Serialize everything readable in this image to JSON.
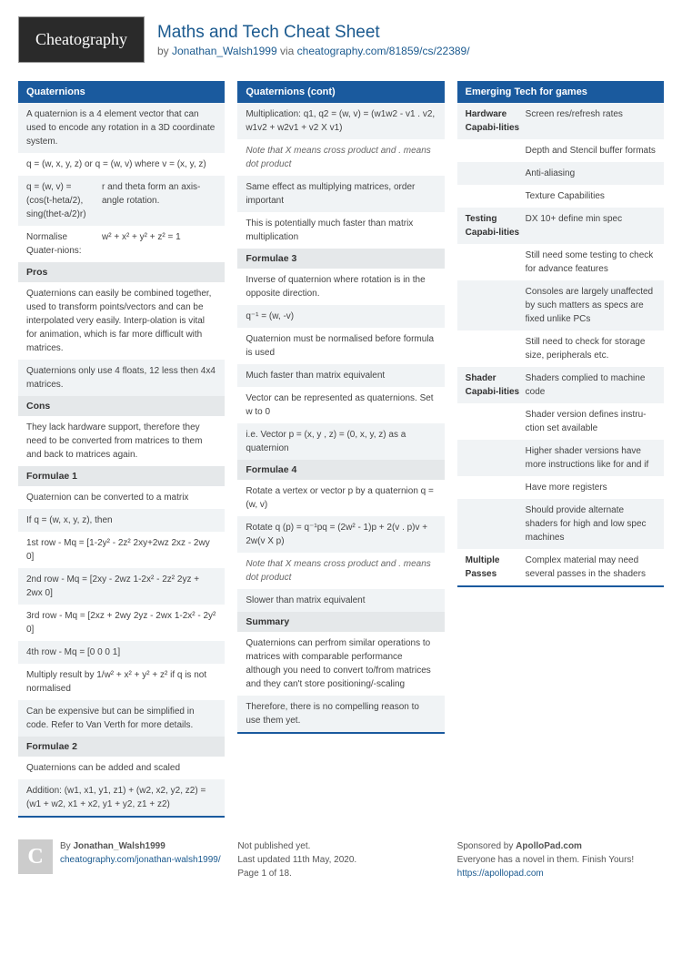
{
  "logo": "Cheatography",
  "title": "Maths and Tech Cheat Sheet",
  "byline_by": "by ",
  "author": "Jonathan_Walsh1999",
  "byline_via": " via ",
  "url": "cheatography.com/81859/cs/22389/",
  "col1": {
    "h1": "Quaternions",
    "r1": "A quaternion is a 4 element vector that can used to encode any rotation in a 3D coordinate system.",
    "r2": "q = (w, x, y, z) or q = (w, v) where v = (x, y, z)",
    "r3a": "q = (w, v) = (cos(t-heta/2), sing(thet-a/2)r)",
    "r3b": "r and theta form an axis-angle rotation.",
    "r4a": "Normalise Quater-nions:",
    "r4b": "w² + x² + y² + z² = 1",
    "sh_pros": "Pros",
    "r5": "Quaternions can easily be combined together, used to transform points/vectors and can be interpolated very easily. Interp-olation is vital for animation, which is far more difficult with matrices.",
    "r6": "Quaternions only use 4 floats, 12 less then 4x4 matrices.",
    "sh_cons": "Cons",
    "r7": "They lack hardware support, therefore they need to be converted from matrices to them and back to matrices again.",
    "sh_f1": "Formulae 1",
    "r8": "Quaternion can be converted to a matrix",
    "r9": "If q = (w, x, y, z), then",
    "r10": "1st row - Mq = [1-2y² - 2z² 2xy+2wz 2xz - 2wy 0]",
    "r11": "2nd row - Mq = [2xy - 2wz 1-2x² - 2z² 2yz + 2wx 0]",
    "r12": "3rd row - Mq = [2xz + 2wy 2yz - 2wx 1-2x² - 2y² 0]",
    "r13": "4th row - Mq = [0 0 0 1]",
    "r14": "Multiply result by 1/w² + x² + y² + z² if q is not normalised",
    "r15": "Can be expensive but can be simplified in code. Refer to Van Verth for more details.",
    "sh_f2": "Formulae 2",
    "r16": "Quaternions can be added and scaled",
    "r17": "Addition: (w1, x1, y1, z1) + (w2, x2, y2, z2) = (w1 + w2, x1 + x2, y1 + y2, z1 + z2)"
  },
  "col2": {
    "h1": "Quaternions (cont)",
    "r1": "Multiplication: q1, q2 = (w, v) = (w1w2 - v1 . v2, w1v2 + w2v1 + v2 X v1)",
    "r2": "Note that X means cross product and . means dot product",
    "r3": "Same effect as multiplying matrices, order important",
    "r4": "This is potentially much faster than matrix multiplication",
    "sh_f3": "Formulae 3",
    "r5": "Inverse of quaternion where rotation is in the opposite direction.",
    "r6": "q⁻¹ = (w, -v)",
    "r7": "Quaternion must be normalised before formula is used",
    "r8": "Much faster than matrix equivalent",
    "r9": "Vector can be represented as quaternions. Set w to 0",
    "r10": "i.e. Vector p = (x, y , z) = (0, x, y, z) as a quaternion",
    "sh_f4": "Formulae 4",
    "r11": "Rotate a vertex or vector p by a quaternion q = (w, v)",
    "r12": "Rotate q (p) = q⁻¹pq = (2w² - 1)p + 2(v . p)v + 2w(v X p)",
    "r13": "Note that X means cross product and . means dot product",
    "r14": "Slower than matrix equivalent",
    "sh_sum": "Summary",
    "r15": "Quaternions can perfrom similar operations to matrices with comparable performance although you need to convert to/from matrices and they can't store positioning/-scaling",
    "r16": "Therefore, there is no compelling reason to use them yet."
  },
  "col3": {
    "h1": "Emerging Tech for games",
    "rows": [
      {
        "k": "Hardware Capabi-lities",
        "v": "Screen res/refresh rates"
      },
      {
        "k": "",
        "v": "Depth and Stencil buffer formats"
      },
      {
        "k": "",
        "v": "Anti-aliasing"
      },
      {
        "k": "",
        "v": "Texture Capabilities"
      },
      {
        "k": "Testing Capabi-lities",
        "v": "DX 10+ define min spec"
      },
      {
        "k": "",
        "v": "Still need some testing to check for advance features"
      },
      {
        "k": "",
        "v": "Consoles are largely unaffected by such matters as specs are fixed unlike PCs"
      },
      {
        "k": "",
        "v": "Still need to check for storage size, peripherals etc."
      },
      {
        "k": "Shader Capabi-lities",
        "v": "Shaders complied to machine code"
      },
      {
        "k": "",
        "v": "Shader version defines instru-ction set available"
      },
      {
        "k": "",
        "v": "Higher shader versions have more instructions like for and if"
      },
      {
        "k": "",
        "v": "Have more registers"
      },
      {
        "k": "",
        "v": "Should provide alternate shaders for high and low spec machines"
      },
      {
        "k": "Multiple Passes",
        "v": "Complex material may need several passes in the shaders"
      }
    ]
  },
  "footer": {
    "by_prefix": "By ",
    "author": "Jonathan_Walsh1999",
    "author_url": "cheatography.com/jonathan-walsh1999/",
    "meta1": "Not published yet.",
    "meta2": "Last updated 11th May, 2020.",
    "meta3": "Page 1 of 18.",
    "spon_prefix": "Sponsored by ",
    "spon": "ApolloPad.com",
    "spon_text": "Everyone has a novel in them. Finish Yours!",
    "spon_url": "https://apollopad.com"
  }
}
